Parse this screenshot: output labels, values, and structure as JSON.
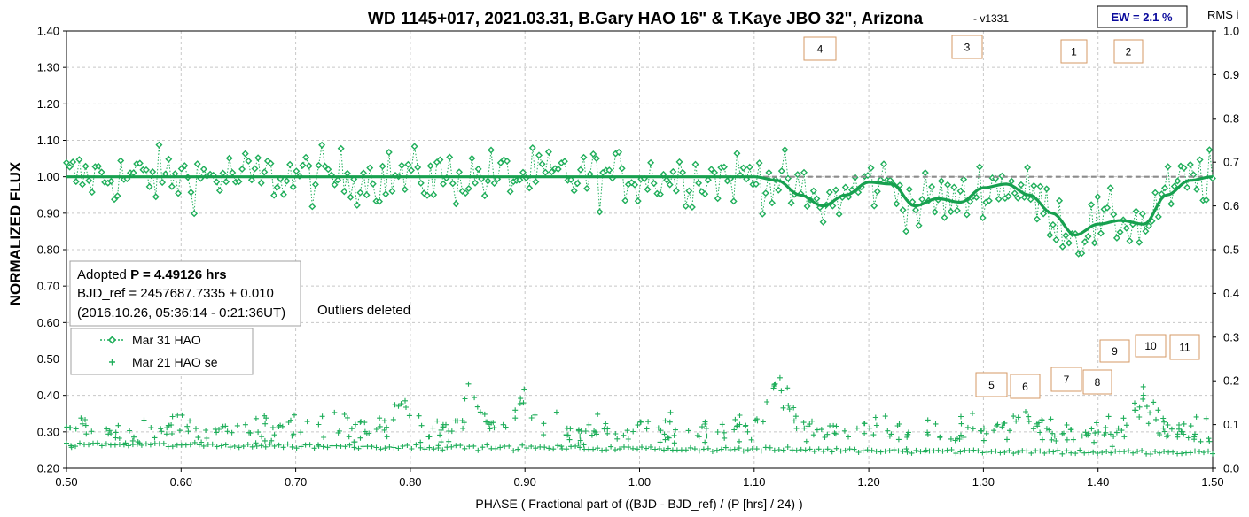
{
  "colors": {
    "series_green": "#1fae5a",
    "fit_green": "#17a04f",
    "baseline_gray": "#8c8c8c",
    "grid": "#c8c8c8",
    "box_border": "#d49a66",
    "ew_text": "#0a0a9c"
  },
  "chart_data": {
    "type": "scatter",
    "title": "WD 1145+017, 2021.03.31, B.Gary HAO 16\" & T.Kaye JBO 32\", Arizona",
    "version": "- v1331",
    "ew_label": "EW = 2.1 %",
    "right_axis_title": "RMS i",
    "xlabel": "PHASE ( Fractional part of ((BJD - BJD_ref) / (P [hrs] / 24) )",
    "ylabel": "NORMALIZED FLUX",
    "xlim": [
      0.5,
      1.5
    ],
    "ylim": [
      0.2,
      1.4
    ],
    "y2lim": [
      0.0,
      1.0
    ],
    "x_ticks": [
      "0.50",
      "0.60",
      "0.70",
      "0.80",
      "0.90",
      "1.00",
      "1.10",
      "1.20",
      "1.30",
      "1.40",
      "1.50"
    ],
    "y_ticks": [
      "0.20",
      "0.30",
      "0.40",
      "0.50",
      "0.60",
      "0.70",
      "0.80",
      "0.90",
      "1.00",
      "1.10",
      "1.20",
      "1.30",
      "1.40"
    ],
    "y2_ticks": [
      "0.0",
      "0.1",
      "0.2",
      "0.3",
      "0.4",
      "0.5",
      "0.6",
      "0.7",
      "0.8",
      "0.9",
      "1.0"
    ],
    "grid": true,
    "legend_position": "middle-left",
    "info_box": {
      "line1_prefix": "Adopted ",
      "line1_bold": "P = 4.49126 hrs",
      "line2": "BJD_ref = 2457687.7335 + 0.010",
      "line3": "(2016.10.26, 05:36:14 - 0:21:36UT)"
    },
    "note": "Outliers deleted",
    "series": [
      {
        "name": "Mar 31 HAO",
        "marker": "open-diamond",
        "line": "dotted"
      },
      {
        "name": "Mar 21 HAO se",
        "marker": "plus"
      }
    ],
    "model_fit": {
      "baseline": 1.0,
      "x": [
        0.5,
        1.1,
        1.12,
        1.14,
        1.16,
        1.18,
        1.2,
        1.22,
        1.24,
        1.26,
        1.28,
        1.3,
        1.32,
        1.34,
        1.36,
        1.38,
        1.4,
        1.42,
        1.44,
        1.46,
        1.48,
        1.5
      ],
      "y": [
        1.0,
        1.0,
        0.99,
        0.95,
        0.92,
        0.95,
        0.985,
        0.98,
        0.92,
        0.94,
        0.93,
        0.97,
        0.98,
        0.95,
        0.9,
        0.84,
        0.87,
        0.88,
        0.87,
        0.95,
        0.99,
        1.0
      ]
    },
    "dips": [
      {
        "label": "4",
        "x": 1.16
      },
      {
        "label": "3",
        "x": 1.28
      },
      {
        "label": "1",
        "x": 1.38
      },
      {
        "label": "2",
        "x": 1.425
      },
      {
        "label": "5",
        "x": 1.31
      },
      {
        "label": "6",
        "x": 1.34
      },
      {
        "label": "7",
        "x": 1.37
      },
      {
        "label": "8",
        "x": 1.4
      },
      {
        "label": "9",
        "x": 1.415
      },
      {
        "label": "10",
        "x": 1.445
      },
      {
        "label": "11",
        "x": 1.475
      }
    ]
  }
}
